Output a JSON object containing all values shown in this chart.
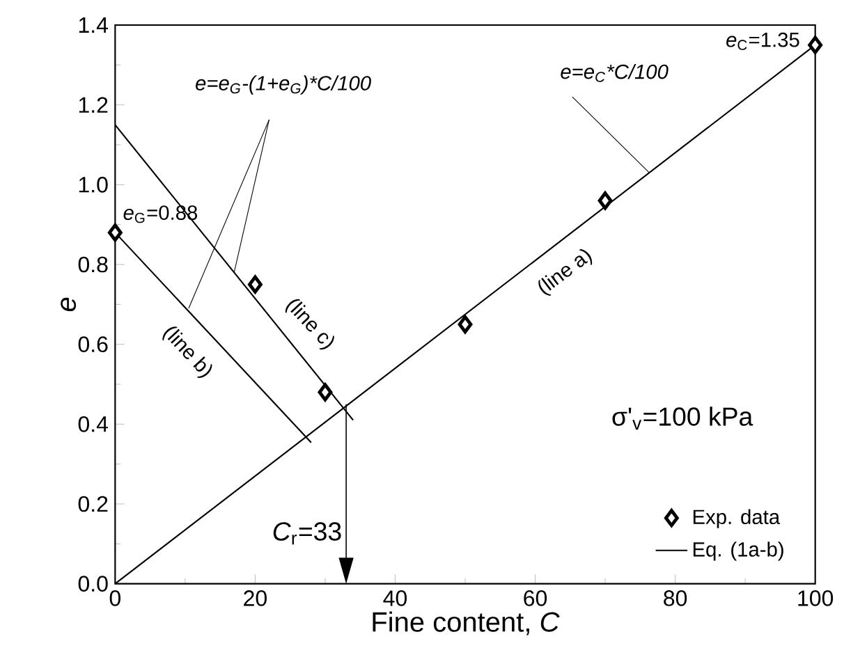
{
  "chart_data": {
    "type": "scatter",
    "xlabel": "Fine content, *C*",
    "ylabel": "e",
    "xlim": [
      0,
      100
    ],
    "xticks": [
      0,
      20,
      40,
      60,
      80,
      100
    ],
    "ylim": [
      0,
      1.4
    ],
    "yticks": [
      {
        "value": 0,
        "label": "0.0"
      },
      {
        "value": 0.2,
        "label": "0.2"
      },
      {
        "value": 0.4,
        "label": "0.4"
      },
      {
        "value": 0.6,
        "label": "0.6"
      },
      {
        "value": 0.8,
        "label": "0.8"
      },
      {
        "value": 1.0,
        "label": "1.0"
      },
      {
        "value": 1.2,
        "label": "1.2"
      },
      {
        "value": 1.4,
        "label": "1.4"
      }
    ],
    "legend": "bottom right",
    "series": [
      {
        "name": "Exp. data",
        "marker": "diamond",
        "color": "#000000",
        "x": [
          0,
          20,
          30,
          50,
          70,
          100
        ],
        "values": [
          0.88,
          0.75,
          0.48,
          0.65,
          0.96,
          1.35
        ]
      },
      {
        "name": "Eq. (1a-b)",
        "type": "line",
        "line_style": "solid",
        "color": "#000000",
        "x": [
          0,
          100
        ],
        "values": [
          0,
          1.35
        ]
      },
      {
        "type": "line",
        "line_style": "solid",
        "color": "#000000",
        "x": [
          0,
          28
        ],
        "values": [
          0.88,
          0.354
        ]
      },
      {
        "type": "line",
        "line_style": "solid",
        "color": "#000000",
        "x": [
          0,
          34
        ],
        "values": [
          1.15,
          0.41
        ]
      }
    ],
    "annotations": [
      {
        "text": "*e*$_{G}$=0.88",
        "x": 0,
        "y": 0.88
      },
      {
        "text": "*e*$_{C}$=1.35",
        "x": 100,
        "y": 1.35
      },
      {
        "text": "e=e$_{G}$-(1+e$_{G}$)*C/100",
        "x": 17,
        "y": 0.78
      },
      {
        "text": "e=e$_{C}$*C/100",
        "x": 76.3,
        "y": 1.03
      },
      "(line a)",
      "(line b)",
      "(line c)",
      "σ'$_{v}$=100 kPa"
    ],
    "ref_lines": [
      {
        "axis": "x",
        "value": 33,
        "label": "*C*$_{r}$=33"
      }
    ]
  }
}
